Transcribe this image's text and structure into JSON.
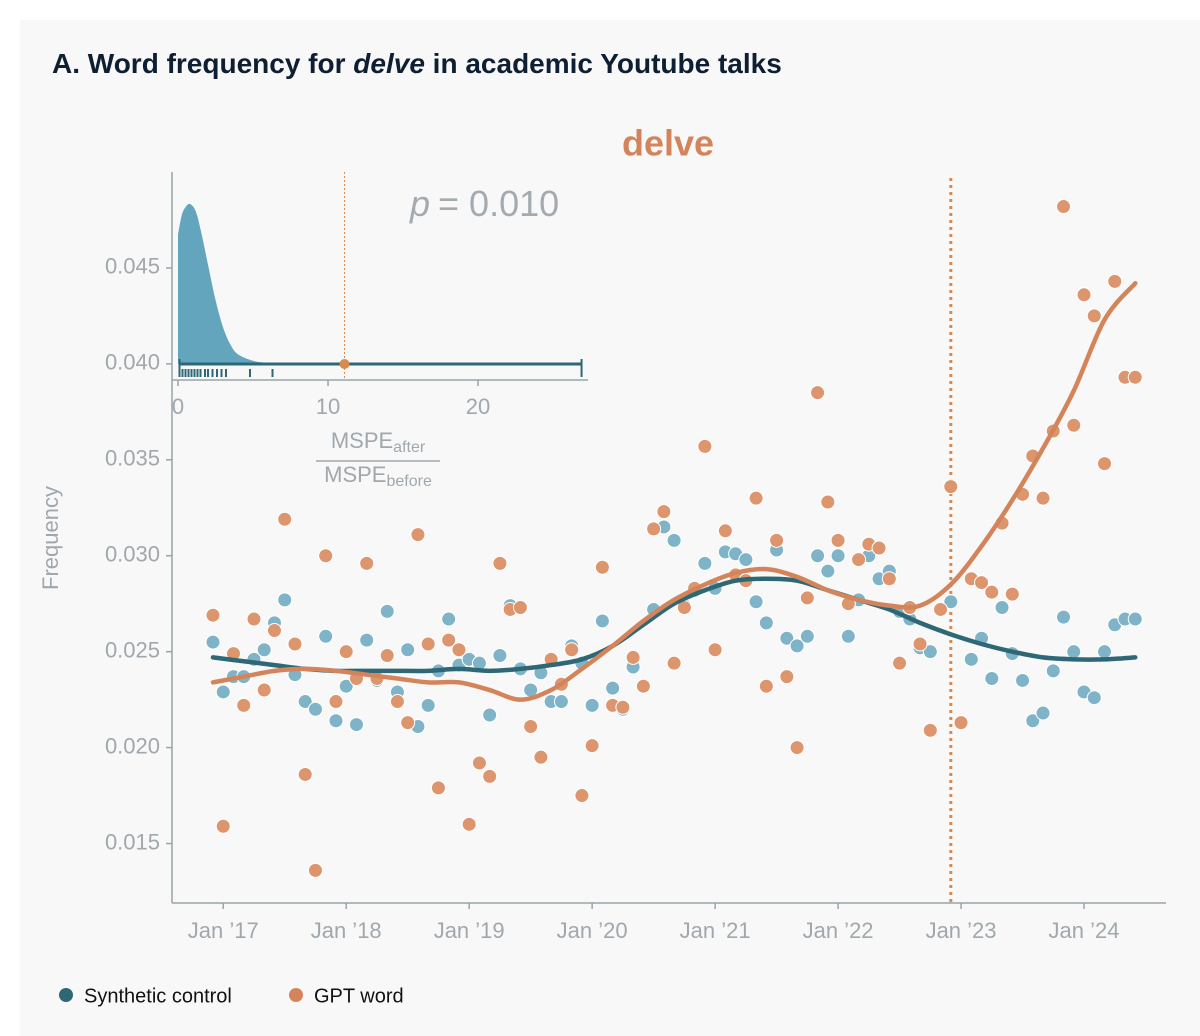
{
  "header": {
    "title": [
      {
        "text": "A. Word frequency for "
      },
      {
        "text": "delve",
        "italic": true
      },
      {
        "text": " in academic Youtube talks"
      }
    ]
  },
  "chart_data": [
    {
      "type": "scatter",
      "title": "delve",
      "title_color": "#d4845a",
      "ylabel": "Frequency",
      "xlim": [
        "2016-08",
        "2024-09"
      ],
      "ylim": [
        0.0119,
        0.05
      ],
      "xticks": [
        {
          "value": "2017-01",
          "label": "Jan ’17"
        },
        {
          "value": "2018-01",
          "label": "Jan ’18"
        },
        {
          "value": "2019-01",
          "label": "Jan ’19"
        },
        {
          "value": "2020-01",
          "label": "Jan ’20"
        },
        {
          "value": "2021-01",
          "label": "Jan ’21"
        },
        {
          "value": "2022-01",
          "label": "Jan ’22"
        },
        {
          "value": "2023-01",
          "label": "Jan ’23"
        },
        {
          "value": "2024-01",
          "label": "Jan ’24"
        }
      ],
      "yticks": [
        0.015,
        {
          "value": 0.02,
          "label": "0.020"
        },
        0.025,
        {
          "value": 0.03,
          "label": "0.030"
        },
        0.035,
        {
          "value": 0.04,
          "label": "0.040"
        },
        0.045
      ],
      "event_line": {
        "x": "2022-12",
        "color": "#d98a4f"
      },
      "legend": "bottom-left",
      "x": [
        "2016-12",
        "2017-01",
        "2017-02",
        "2017-03",
        "2017-04",
        "2017-05",
        "2017-06",
        "2017-07",
        "2017-08",
        "2017-09",
        "2017-10",
        "2017-11",
        "2017-12",
        "2018-01",
        "2018-02",
        "2018-03",
        "2018-04",
        "2018-05",
        "2018-06",
        "2018-07",
        "2018-08",
        "2018-09",
        "2018-10",
        "2018-11",
        "2018-12",
        "2019-01",
        "2019-02",
        "2019-03",
        "2019-04",
        "2019-05",
        "2019-06",
        "2019-07",
        "2019-08",
        "2019-09",
        "2019-10",
        "2019-11",
        "2019-12",
        "2020-01",
        "2020-02",
        "2020-03",
        "2020-04",
        "2020-05",
        "2020-06",
        "2020-07",
        "2020-08",
        "2020-09",
        "2020-10",
        "2020-11",
        "2020-12",
        "2021-01",
        "2021-02",
        "2021-03",
        "2021-04",
        "2021-05",
        "2021-06",
        "2021-07",
        "2021-08",
        "2021-09",
        "2021-10",
        "2021-11",
        "2021-12",
        "2022-01",
        "2022-02",
        "2022-03",
        "2022-04",
        "2022-05",
        "2022-06",
        "2022-07",
        "2022-08",
        "2022-09",
        "2022-10",
        "2022-11",
        "2022-12",
        "2023-01",
        "2023-02",
        "2023-03",
        "2023-04",
        "2023-05",
        "2023-06",
        "2023-07",
        "2023-08",
        "2023-09",
        "2023-10",
        "2023-11",
        "2023-12",
        "2024-01",
        "2024-02",
        "2024-03",
        "2024-04",
        "2024-05",
        "2024-06"
      ],
      "fit_x": [
        "2016-12",
        "2017-03",
        "2017-06",
        "2017-09",
        "2017-12",
        "2018-03",
        "2018-06",
        "2018-09",
        "2018-12",
        "2019-03",
        "2019-06",
        "2019-09",
        "2019-12",
        "2020-03",
        "2020-06",
        "2020-09",
        "2020-12",
        "2021-03",
        "2021-06",
        "2021-09",
        "2021-12",
        "2022-03",
        "2022-06",
        "2022-09",
        "2022-12",
        "2023-03",
        "2023-06",
        "2023-09",
        "2023-12",
        "2024-03",
        "2024-06"
      ],
      "series": [
        {
          "name": "Synthetic control",
          "color": "#7fb4c8",
          "fit_color": "#2e6877",
          "values": [
            0.0255,
            0.0229,
            0.0237,
            0.0237,
            0.0246,
            0.0251,
            0.0265,
            0.0277,
            0.0238,
            0.0224,
            0.022,
            0.0258,
            0.0214,
            0.0232,
            0.0212,
            0.0256,
            0.0235,
            0.0271,
            0.0229,
            0.0251,
            0.0211,
            0.0222,
            0.024,
            0.0267,
            0.0243,
            0.0246,
            0.0244,
            0.0217,
            0.0248,
            0.0274,
            0.0241,
            0.023,
            0.0239,
            0.0224,
            0.0224,
            0.0253,
            0.0244,
            0.0222,
            0.0266,
            0.0231,
            0.022,
            0.0242,
            0.0232,
            0.0272,
            0.0315,
            0.0308,
            0.0274,
            0.0282,
            0.0296,
            0.0283,
            0.0302,
            0.0301,
            0.0298,
            0.0276,
            0.0265,
            0.0303,
            0.0257,
            0.0253,
            0.0258,
            0.03,
            0.0292,
            0.03,
            0.0258,
            0.0277,
            0.03,
            0.0288,
            0.0292,
            0.0271,
            0.0267,
            0.0252,
            0.025,
            0.0272,
            0.0276,
            0.0213,
            0.0246,
            0.0257,
            0.0236,
            0.0273,
            0.0249,
            0.0235,
            0.0214,
            0.0218,
            0.024,
            0.0268,
            0.025,
            0.0229,
            0.0226,
            0.025,
            0.0264,
            0.0267,
            0.0267
          ],
          "fit_values": [
            0.0247,
            0.0245,
            0.0243,
            0.0241,
            0.024,
            0.024,
            0.024,
            0.024,
            0.0241,
            0.024,
            0.0241,
            0.0243,
            0.0246,
            0.0253,
            0.0264,
            0.0275,
            0.0282,
            0.0287,
            0.0288,
            0.0287,
            0.0282,
            0.0277,
            0.0272,
            0.0265,
            0.0259,
            0.0254,
            0.025,
            0.0247,
            0.0246,
            0.0246,
            0.0247
          ]
        },
        {
          "name": "GPT word",
          "color": "#dc956c",
          "fit_color": "#d4845a",
          "values": [
            0.0269,
            0.0159,
            0.0249,
            0.0222,
            0.0267,
            0.023,
            0.0261,
            0.0319,
            0.0254,
            0.0186,
            0.0136,
            0.03,
            0.0224,
            0.025,
            0.0236,
            0.0296,
            0.0236,
            0.0248,
            0.0224,
            0.0213,
            0.0311,
            0.0254,
            0.0179,
            0.0256,
            0.0251,
            0.016,
            0.0192,
            0.0185,
            0.0296,
            0.0272,
            0.0273,
            0.0211,
            0.0195,
            0.0246,
            0.0233,
            0.0251,
            0.0175,
            0.0201,
            0.0294,
            0.0222,
            0.0221,
            0.0247,
            0.0232,
            0.0314,
            0.0323,
            0.0244,
            0.0273,
            0.0283,
            0.0357,
            0.0251,
            0.0313,
            0.029,
            0.0287,
            0.033,
            0.0232,
            0.0308,
            0.0237,
            0.02,
            0.0278,
            0.0385,
            0.0328,
            0.0308,
            0.0275,
            0.0298,
            0.0306,
            0.0304,
            0.0288,
            0.0244,
            0.0273,
            0.0254,
            0.0209,
            0.0272,
            0.0336,
            0.0213,
            0.0288,
            0.0286,
            0.0281,
            0.0317,
            0.028,
            0.0332,
            0.0352,
            0.033,
            0.0365,
            0.0482,
            0.0368,
            0.0436,
            0.0425,
            0.0348,
            0.0443,
            0.0393,
            0.0393
          ],
          "fit_values": [
            0.0234,
            0.0237,
            0.024,
            0.0241,
            0.024,
            0.0238,
            0.0236,
            0.0234,
            0.0234,
            0.023,
            0.0225,
            0.023,
            0.0241,
            0.0253,
            0.0266,
            0.0277,
            0.0285,
            0.0291,
            0.0293,
            0.0289,
            0.0282,
            0.0277,
            0.0274,
            0.0274,
            0.0285,
            0.0305,
            0.0329,
            0.0356,
            0.0386,
            0.0423,
            0.0442
          ]
        }
      ]
    },
    {
      "type": "density",
      "color": "#62a5bd",
      "rug_color": "#2e6877",
      "observed_color": "#d98a4f",
      "xlim": [
        -0.4,
        27.33
      ],
      "ylim": [
        0,
        1.2
      ],
      "xticks": [
        0,
        10,
        20
      ],
      "x": [
        0,
        0.25,
        0.5,
        0.8,
        1.2,
        1.6,
        2,
        2.5,
        3,
        3.5,
        4,
        5,
        6,
        7,
        8
      ],
      "values": [
        0.81,
        0.93,
        0.98,
        1.0,
        0.95,
        0.8,
        0.62,
        0.4,
        0.23,
        0.12,
        0.06,
        0.02,
        0.007,
        0.002,
        0
      ],
      "rug": [
        0.1,
        0.3,
        0.5,
        0.7,
        0.9,
        1.1,
        1.3,
        1.5,
        1.8,
        2.0,
        2.3,
        2.6,
        2.9,
        3.2,
        4.8,
        6.3,
        26.9
      ],
      "observed": 11.1,
      "p_symbol": "p",
      "p_text": "= 0.010",
      "xlabel": {
        "numerator": "MSPE",
        "numerator_sub": "after",
        "denominator": "MSPE",
        "denominator_sub": "before"
      }
    }
  ]
}
